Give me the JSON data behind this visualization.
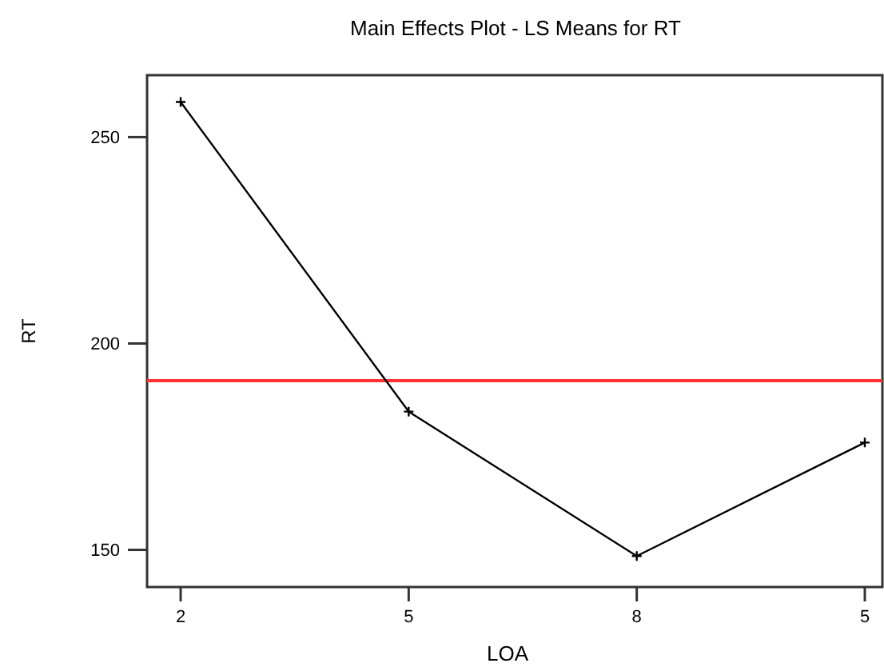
{
  "chart_data": {
    "type": "line",
    "title": "Main Effects Plot - LS Means for RT",
    "xlabel": "LOA",
    "ylabel": "RT",
    "categories": [
      "2",
      "5",
      "8",
      "5"
    ],
    "series": [
      {
        "color": "#000000",
        "values": [
          258.5,
          183.5,
          148.5,
          176
        ]
      }
    ],
    "marker": "cross",
    "ylim": [
      141,
      265
    ],
    "yticks": [
      150,
      200,
      250
    ],
    "ref_lines": [
      {
        "axis": "y",
        "value": 191,
        "color": "#ff3333"
      }
    ],
    "grid": false
  }
}
